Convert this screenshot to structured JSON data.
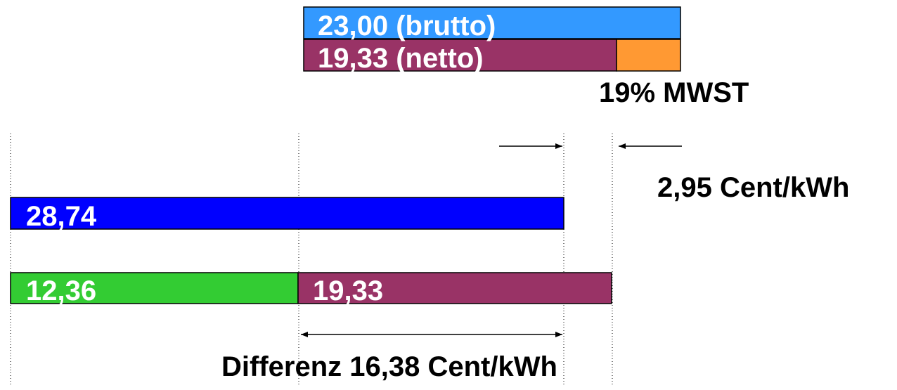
{
  "top": {
    "gross_label": "23,00 (brutto)",
    "net_label": "19,33 (netto)",
    "vat_label": "19% MWST"
  },
  "gap_label": "2,95 Cent/kWh",
  "bars": {
    "upper_label": "28,74",
    "lower_left_label": "12,36",
    "lower_right_label": "19,33"
  },
  "difference_label": "Differenz 16,38 Cent/kWh"
}
